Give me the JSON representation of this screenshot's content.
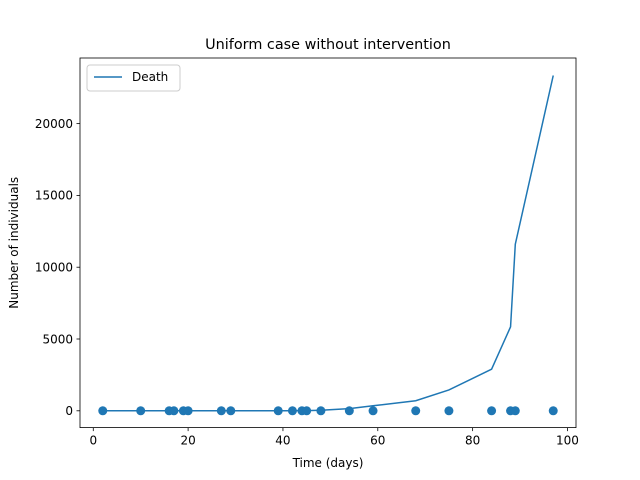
{
  "chart_data": {
    "type": "line",
    "title": "Uniform case without intervention",
    "xlabel": "Time (days)",
    "ylabel": "Number of individuals",
    "xlim": [
      -2.8,
      101.8
    ],
    "ylim": [
      -1170,
      24570
    ],
    "xticks": [
      0,
      20,
      40,
      60,
      80,
      100
    ],
    "yticks": [
      0,
      5000,
      10000,
      15000,
      20000
    ],
    "grid": false,
    "legend": {
      "placement": "top-left",
      "entries": [
        "Death"
      ]
    },
    "series": [
      {
        "name": "Death",
        "style": "line",
        "color": "#1f77b4",
        "x": [
          2,
          10,
          16,
          17,
          19,
          20,
          27,
          29,
          39,
          42,
          44,
          45,
          48,
          54,
          59,
          68,
          75,
          84,
          88,
          89,
          97
        ],
        "y": [
          0,
          0,
          0,
          0,
          0,
          0,
          0,
          0,
          0,
          5,
          10,
          15,
          35,
          150,
          350,
          700,
          1450,
          2900,
          5850,
          11600,
          23350
        ]
      },
      {
        "style": "scatter",
        "color": "#1f77b4",
        "x": [
          2,
          10,
          16,
          17,
          19,
          20,
          27,
          29,
          39,
          42,
          44,
          45,
          48,
          54,
          59,
          68,
          75,
          84,
          88,
          89,
          97
        ],
        "y": [
          0,
          0,
          0,
          0,
          0,
          0,
          0,
          0,
          0,
          0,
          0,
          0,
          0,
          0,
          0,
          0,
          0,
          0,
          0,
          0,
          0
        ]
      }
    ]
  }
}
